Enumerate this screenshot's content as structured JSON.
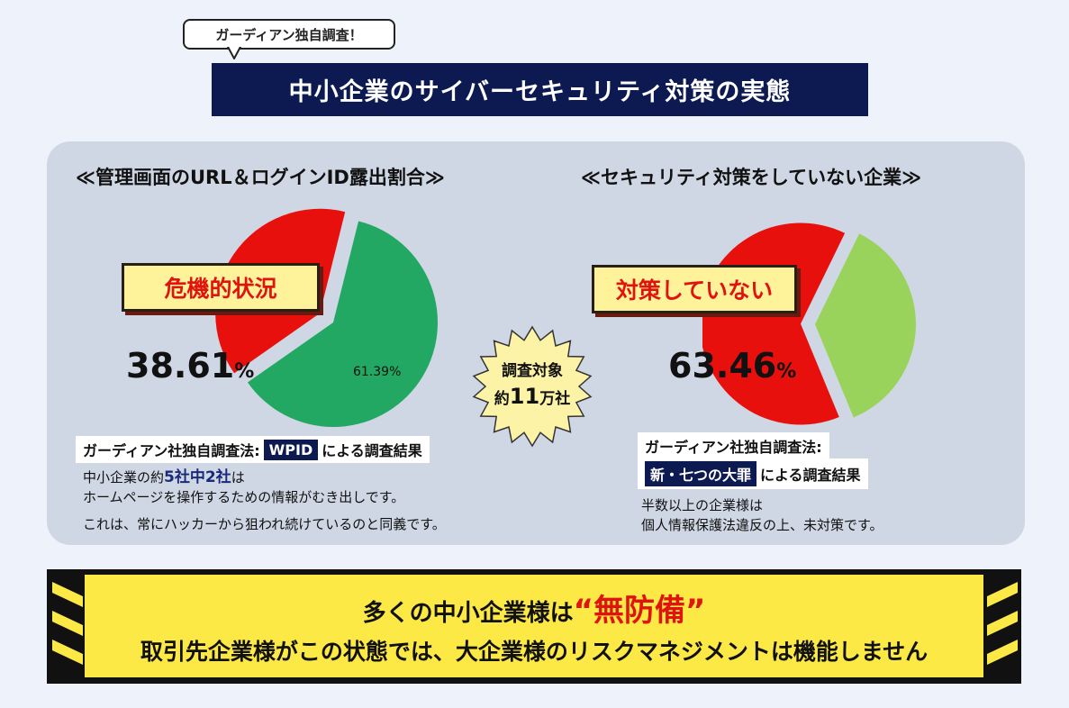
{
  "header": {
    "bubble": "ガーディアン独自調査！",
    "title": "中小企業のサイバーセキュリティ対策の実態"
  },
  "left": {
    "heading": "≪管理画面のURL＆ログインID露出割合≫",
    "label": "危機的状況",
    "big_value": "38.61",
    "big_unit": "%",
    "small_label": "61.39%",
    "method_prefix": "ガーディアン社独自調査法:",
    "method_tag": "WPID",
    "method_suffix": "による調査結果",
    "desc1_pre": "中小企業の約",
    "desc1_em": "5社中2社",
    "desc1_post": "は",
    "desc2": "ホームページを操作するための情報がむき出しです。",
    "desc3": "これは、常にハッカーから狙われ続けているのと同義です。"
  },
  "right": {
    "heading": "≪セキュリティ対策をしていない企業≫",
    "label": "対策していない",
    "big_value": "63.46",
    "big_unit": "%",
    "method_prefix": "ガーディアン社独自調査法:",
    "method_tag": "新・七つの大罪",
    "method_suffix": "による調査結果",
    "desc1": "半数以上の企業様は",
    "desc2": "個人情報保護法違反の上、未対策です。"
  },
  "badge": {
    "line1": "調査対象",
    "line2_pre": "約",
    "line2_num": "11",
    "line2_post": "万社"
  },
  "banner": {
    "line1_pre": "多くの中小企業様は",
    "line1_em": "“無防備”",
    "line2": "取引先企業様がこの状態では、大企業様のリスクマネジメントは機能しません"
  },
  "chart_data": [
    {
      "type": "pie",
      "title": "≪管理画面のURL＆ログインID露出割合≫",
      "slices": [
        {
          "label": "危機的状況",
          "value": 38.61,
          "color": "#e8100c"
        },
        {
          "label": "",
          "value": 61.39,
          "color": "#22a862"
        }
      ]
    },
    {
      "type": "pie",
      "title": "≪セキュリティ対策をしていない企業≫",
      "slices": [
        {
          "label": "対策していない",
          "value": 63.46,
          "color": "#e8100c"
        },
        {
          "label": "",
          "value": 36.54,
          "color": "#9ad35c"
        }
      ]
    }
  ]
}
